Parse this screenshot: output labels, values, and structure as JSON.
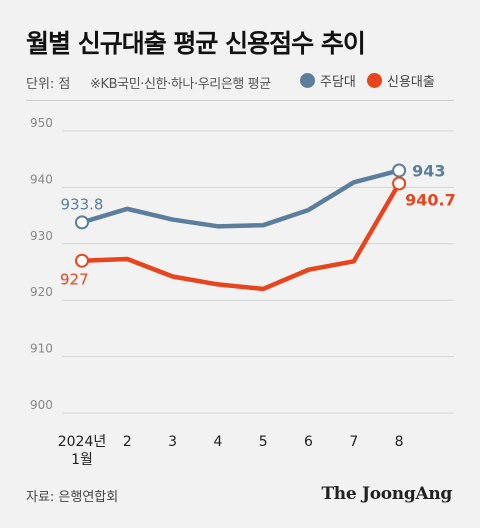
{
  "title": "월별 신규대출 평균 신용점수 추이",
  "unit": "단위: 점",
  "note": "※KB국민·신한·하나·우리은행 평균",
  "source": "자료: 은행연합회",
  "brand": "The JoongAng",
  "chart_data": {
    "type": "line",
    "categories": [
      "2024년\n1월",
      "2",
      "3",
      "4",
      "5",
      "6",
      "7",
      "8"
    ],
    "ylim": [
      900,
      950
    ],
    "yticks": [
      900,
      910,
      920,
      930,
      940,
      950
    ],
    "grid": true,
    "legend_position": "top-right",
    "series": [
      {
        "name": "주담대",
        "color": "#5b7e9e",
        "values": [
          933.8,
          936.2,
          934.3,
          933.1,
          933.3,
          936.0,
          940.9,
          943.0
        ],
        "labels": {
          "first": "933.8",
          "last": "943"
        }
      },
      {
        "name": "신용대출",
        "color": "#e8451e",
        "values": [
          927.0,
          927.3,
          924.2,
          922.8,
          922.0,
          925.4,
          926.9,
          940.7
        ],
        "labels": {
          "first": "927",
          "last": "940.7"
        }
      }
    ]
  }
}
